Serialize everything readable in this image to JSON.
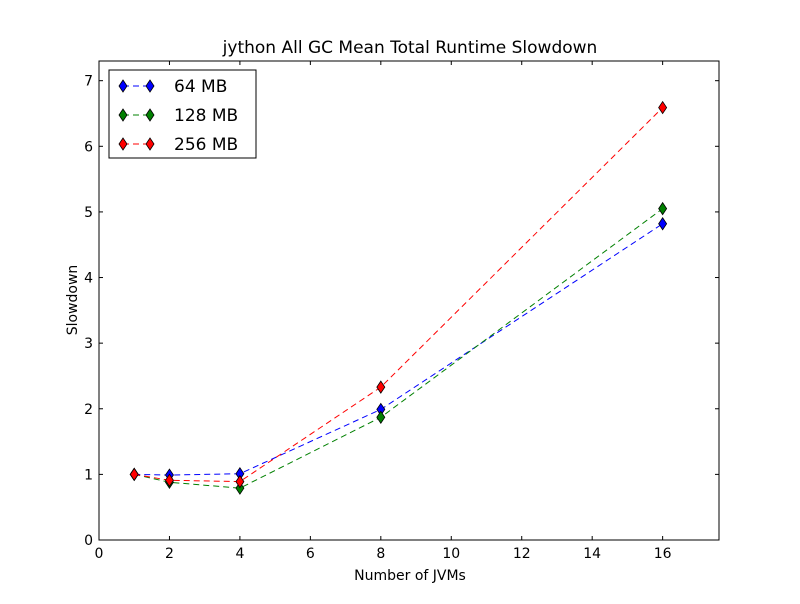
{
  "chart_data": {
    "type": "line",
    "title": "jython All GC Mean Total Runtime Slowdown",
    "xlabel": "Number of JVMs",
    "ylabel": "Slowdown",
    "xlim": [
      0,
      17.6
    ],
    "ylim": [
      0,
      7.3
    ],
    "xticks": [
      0,
      2,
      4,
      6,
      8,
      10,
      12,
      14,
      16
    ],
    "yticks": [
      0,
      1,
      2,
      3,
      4,
      5,
      6,
      7
    ],
    "grid": false,
    "legend_position": "top-left",
    "x": [
      1,
      2,
      4,
      8,
      16
    ],
    "series": [
      {
        "name": "64 MB",
        "color": "#0000ff",
        "marker": "diamond",
        "linestyle": "dashed",
        "values": [
          1.0,
          0.99,
          1.01,
          1.99,
          4.82
        ]
      },
      {
        "name": "128 MB",
        "color": "#008000",
        "marker": "diamond",
        "linestyle": "dashed",
        "values": [
          1.0,
          0.88,
          0.79,
          1.87,
          5.05
        ]
      },
      {
        "name": "256 MB",
        "color": "#ff0000",
        "marker": "diamond",
        "linestyle": "dashed",
        "values": [
          1.0,
          0.91,
          0.89,
          2.33,
          6.59
        ]
      }
    ]
  }
}
